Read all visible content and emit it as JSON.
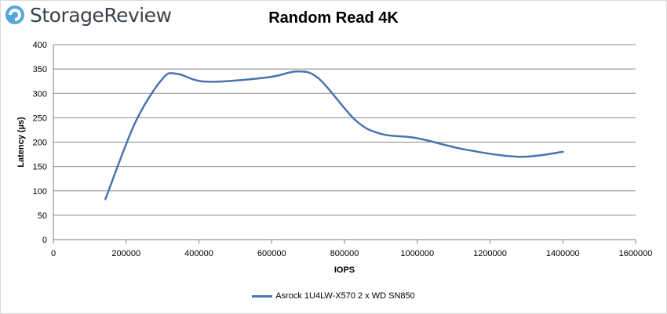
{
  "brand": {
    "logo_text": "StorageReview"
  },
  "colors": {
    "series": "#4a74b0",
    "grid": "#888888",
    "logo": "#3b4148",
    "logo_accent": "#52a8d8"
  },
  "chart_data": {
    "type": "line",
    "title": "Random Read 4K",
    "xlabel": "IOPS",
    "ylabel": "Latency (µs)",
    "xlim": [
      0,
      1600000
    ],
    "ylim": [
      0,
      400
    ],
    "xticks": [
      "0",
      "200000",
      "400000",
      "600000",
      "800000",
      "1000000",
      "1200000",
      "1400000",
      "1600000"
    ],
    "yticks": [
      "0",
      "50",
      "100",
      "150",
      "200",
      "250",
      "300",
      "350",
      "400"
    ],
    "grid": "horizontal",
    "legend_position": "bottom",
    "series": [
      {
        "name": "Asrock 1U4LW-X570 2 x WD SN850",
        "x": [
          143000,
          225000,
          300000,
          340000,
          420000,
          590000,
          670000,
          730000,
          830000,
          900000,
          1000000,
          1130000,
          1280000,
          1400000
        ],
        "y": [
          83,
          240,
          330,
          340,
          324,
          333,
          345,
          330,
          245,
          217,
          208,
          185,
          170,
          180
        ]
      }
    ]
  }
}
